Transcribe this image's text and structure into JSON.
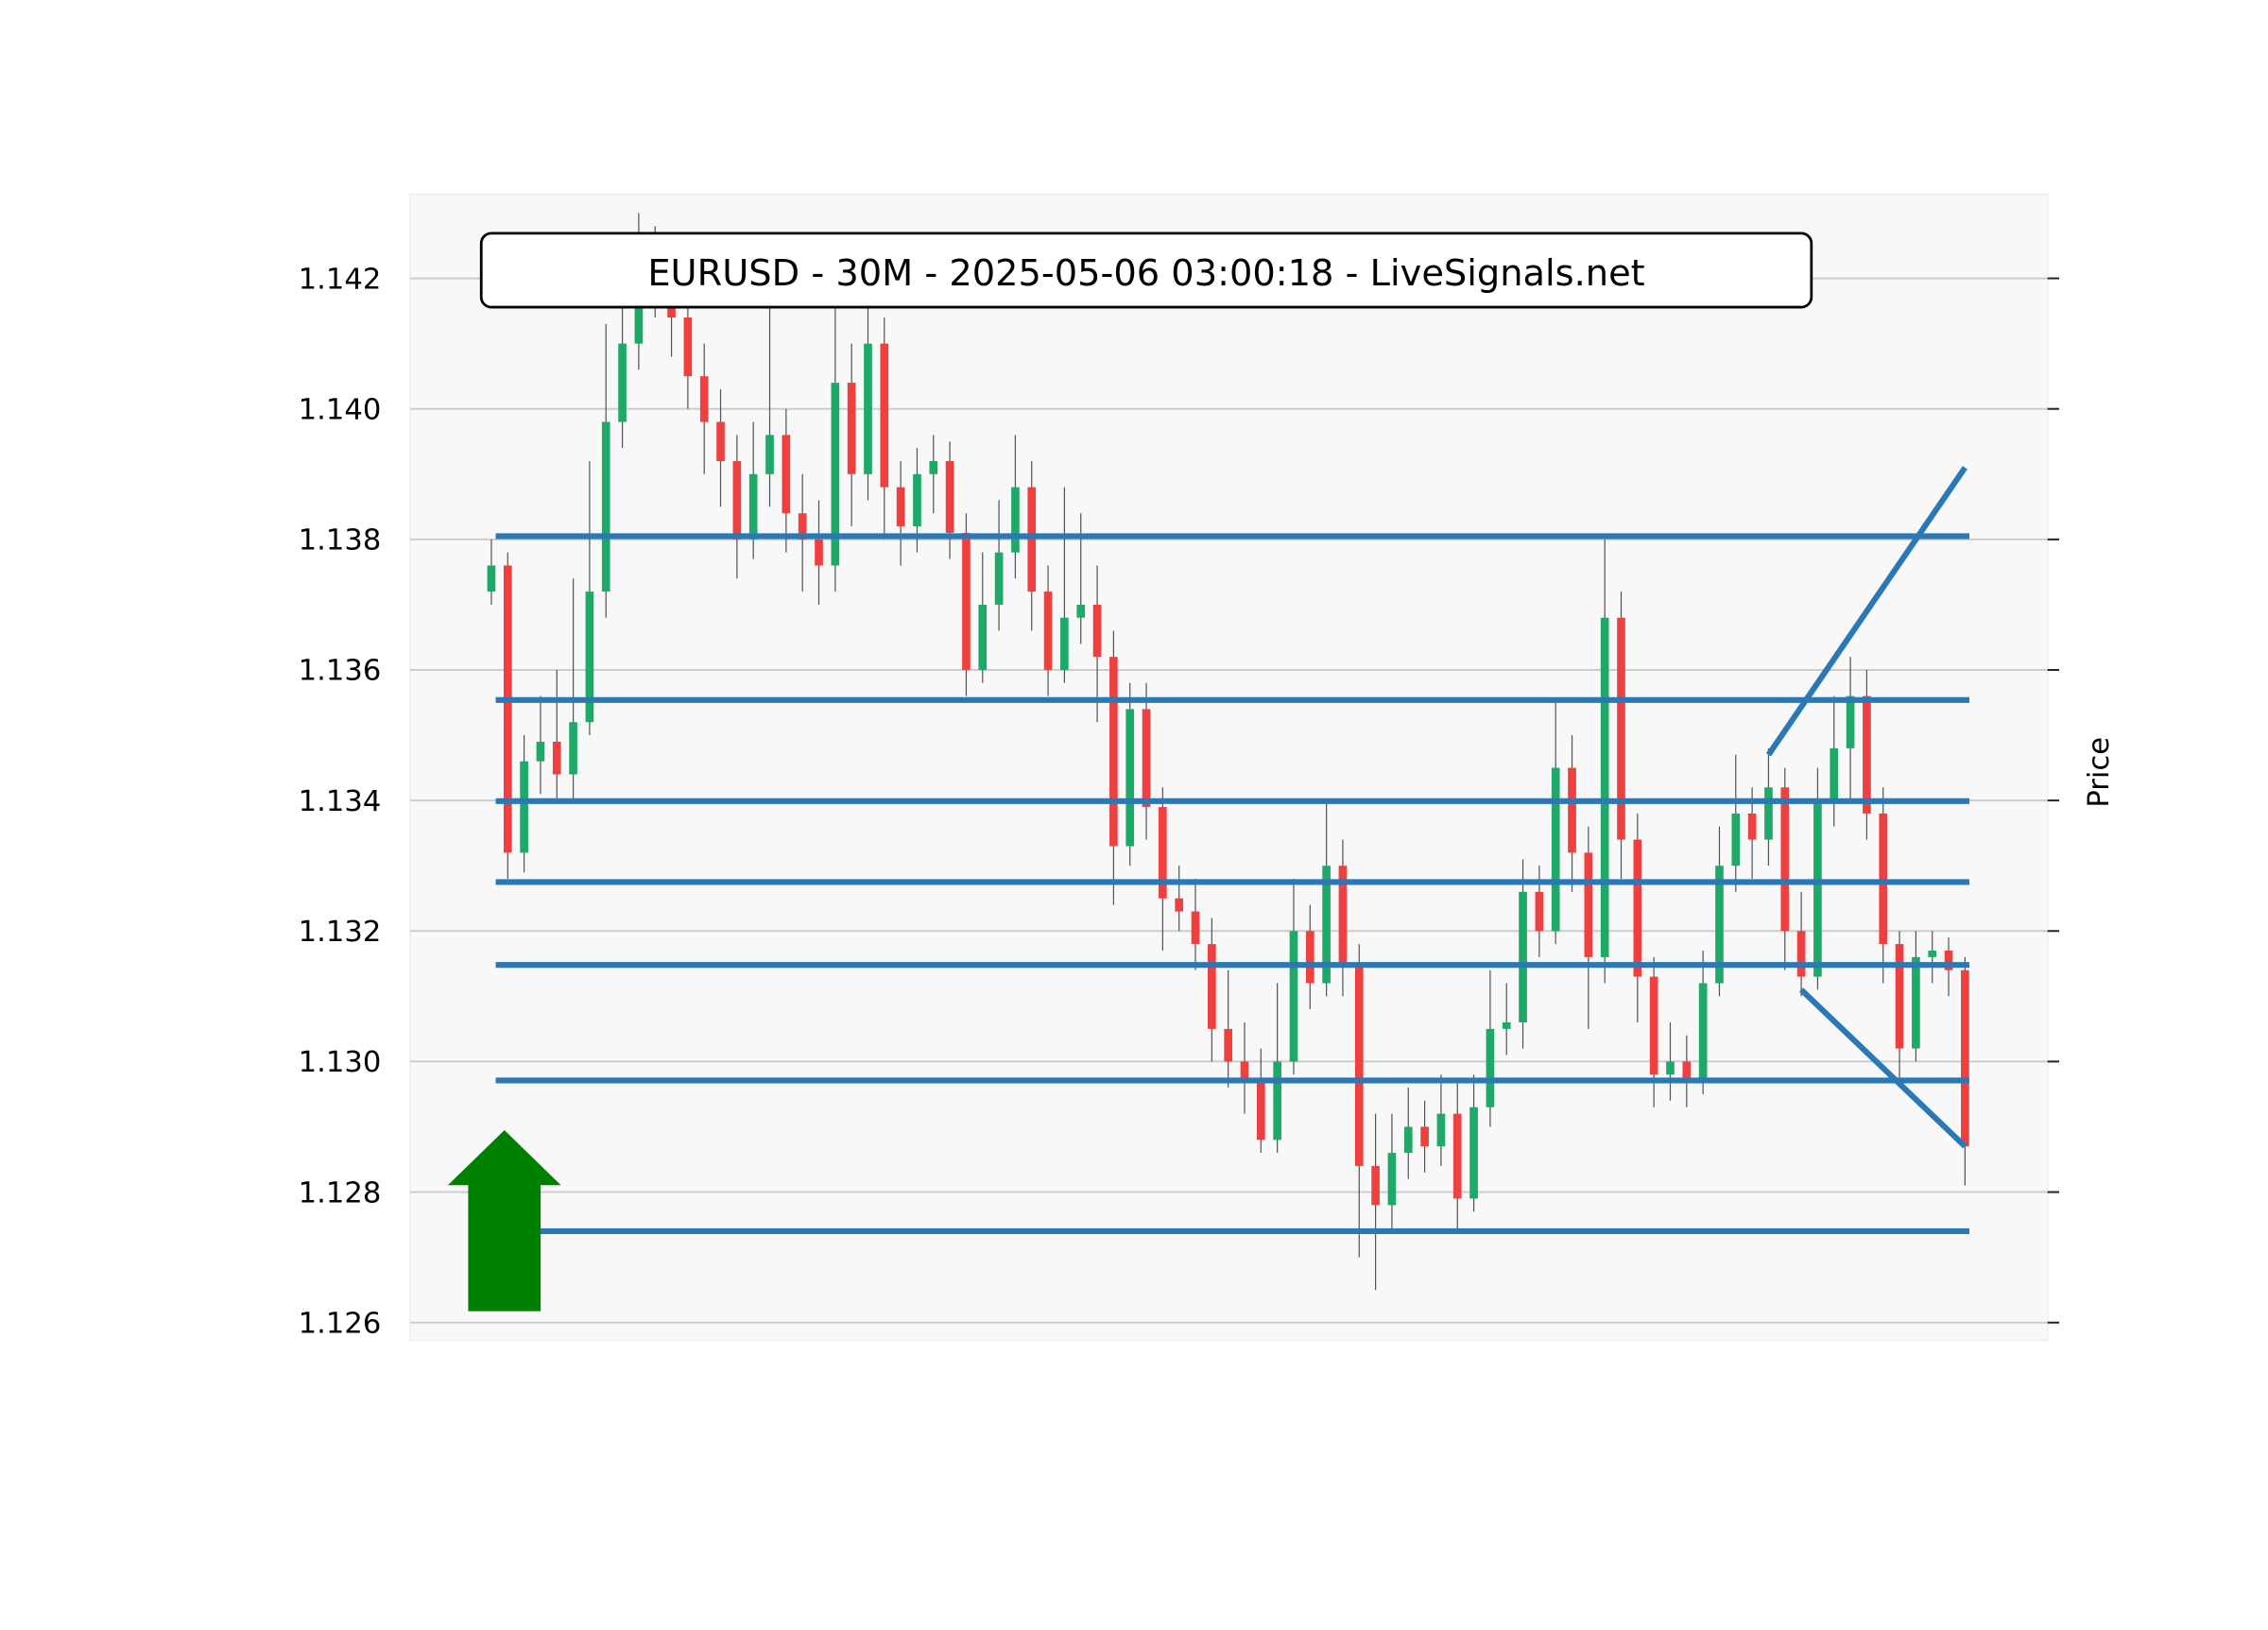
{
  "chart_data": {
    "type": "candlestick",
    "title": "EURUSD - 30M - 2025-05-06 03:00:18 - LiveSignals.net",
    "y_label": "Price",
    "ylim": [
      1.12573,
      1.14329
    ],
    "yticks": [
      {
        "value": 1.126,
        "label": "1.126"
      },
      {
        "value": 1.128,
        "label": "1.128"
      },
      {
        "value": 1.13,
        "label": "1.130"
      },
      {
        "value": 1.132,
        "label": "1.132"
      },
      {
        "value": 1.134,
        "label": "1.134"
      },
      {
        "value": 1.136,
        "label": "1.136"
      },
      {
        "value": 1.138,
        "label": "1.138"
      },
      {
        "value": 1.14,
        "label": "1.140"
      },
      {
        "value": 1.142,
        "label": "1.142"
      }
    ],
    "grid": true,
    "up_color": "#1fa968",
    "down_color": "#ef4040",
    "wick_color": "#555555",
    "line_color": "#2a78b5",
    "signal_color": "#008000",
    "open": [
      1.1372,
      1.1376,
      1.1332,
      1.1346,
      1.1349,
      1.1344,
      1.1352,
      1.1372,
      1.1398,
      1.141,
      1.1424,
      1.142,
      1.1414,
      1.1405,
      1.1398,
      1.1392,
      1.138,
      1.139,
      1.1396,
      1.1384,
      1.138,
      1.1376,
      1.1404,
      1.139,
      1.141,
      1.1388,
      1.1382,
      1.139,
      1.1392,
      1.1381,
      1.136,
      1.137,
      1.1378,
      1.1388,
      1.1372,
      1.136,
      1.1368,
      1.137,
      1.1362,
      1.1333,
      1.1354,
      1.1339,
      1.1325,
      1.1323,
      1.1318,
      1.1305,
      1.13,
      1.1297,
      1.1288,
      1.13,
      1.132,
      1.1312,
      1.133,
      1.1315,
      1.1284,
      1.1278,
      1.1286,
      1.129,
      1.1287,
      1.1292,
      1.1279,
      1.1293,
      1.1305,
      1.1306,
      1.1326,
      1.132,
      1.1345,
      1.1332,
      1.1316,
      1.1368,
      1.1334,
      1.1313,
      1.1298,
      1.13,
      1.1297,
      1.1312,
      1.133,
      1.1338,
      1.1334,
      1.1342,
      1.132,
      1.1313,
      1.134,
      1.1348,
      1.1356,
      1.1338,
      1.1318,
      1.1302,
      1.1316,
      1.1317,
      1.1314
    ],
    "high": [
      1.138,
      1.1378,
      1.135,
      1.1356,
      1.136,
      1.1374,
      1.1392,
      1.1413,
      1.142,
      1.143,
      1.1428,
      1.1424,
      1.1418,
      1.141,
      1.1403,
      1.1396,
      1.1398,
      1.1416,
      1.14,
      1.139,
      1.1386,
      1.1418,
      1.141,
      1.142,
      1.1414,
      1.1392,
      1.1394,
      1.1396,
      1.1395,
      1.1384,
      1.1378,
      1.1386,
      1.1396,
      1.1392,
      1.1376,
      1.1388,
      1.1384,
      1.1376,
      1.1366,
      1.1358,
      1.1358,
      1.1342,
      1.133,
      1.1328,
      1.1322,
      1.1314,
      1.1306,
      1.1302,
      1.1312,
      1.1328,
      1.1324,
      1.134,
      1.1334,
      1.1318,
      1.1292,
      1.1292,
      1.1296,
      1.1294,
      1.1298,
      1.1297,
      1.1298,
      1.1314,
      1.1312,
      1.1331,
      1.133,
      1.1355,
      1.135,
      1.1336,
      1.138,
      1.1372,
      1.1338,
      1.1316,
      1.1306,
      1.1304,
      1.1317,
      1.1336,
      1.1347,
      1.1342,
      1.1348,
      1.1345,
      1.1326,
      1.1345,
      1.1356,
      1.1362,
      1.136,
      1.1342,
      1.132,
      1.132,
      1.132,
      1.1319,
      1.1316
    ],
    "low": [
      1.137,
      1.1328,
      1.1329,
      1.1341,
      1.134,
      1.134,
      1.135,
      1.1368,
      1.1394,
      1.1406,
      1.1414,
      1.1408,
      1.14,
      1.139,
      1.1385,
      1.1374,
      1.1377,
      1.1385,
      1.1378,
      1.1372,
      1.137,
      1.1372,
      1.1382,
      1.1386,
      1.138,
      1.1376,
      1.1378,
      1.1384,
      1.1377,
      1.1356,
      1.1358,
      1.1366,
      1.1374,
      1.1366,
      1.1356,
      1.1358,
      1.1364,
      1.1352,
      1.1324,
      1.133,
      1.1334,
      1.1317,
      1.132,
      1.1314,
      1.13,
      1.1296,
      1.1292,
      1.1286,
      1.1286,
      1.1298,
      1.1308,
      1.131,
      1.131,
      1.127,
      1.1265,
      1.1274,
      1.1282,
      1.1283,
      1.1284,
      1.1274,
      1.1277,
      1.129,
      1.1301,
      1.1302,
      1.1316,
      1.1318,
      1.1326,
      1.1305,
      1.1312,
      1.1328,
      1.1306,
      1.1293,
      1.1294,
      1.1293,
      1.1295,
      1.131,
      1.1326,
      1.1328,
      1.133,
      1.1314,
      1.131,
      1.1311,
      1.1336,
      1.134,
      1.1334,
      1.1312,
      1.1296,
      1.13,
      1.1312,
      1.131,
      1.1281
    ],
    "close": [
      1.1376,
      1.1332,
      1.1346,
      1.1349,
      1.1344,
      1.1352,
      1.1372,
      1.1398,
      1.141,
      1.1424,
      1.142,
      1.1414,
      1.1405,
      1.1398,
      1.1392,
      1.138,
      1.139,
      1.1396,
      1.1384,
      1.138,
      1.1376,
      1.1404,
      1.139,
      1.141,
      1.1388,
      1.1382,
      1.139,
      1.1392,
      1.1381,
      1.136,
      1.137,
      1.1378,
      1.1388,
      1.1372,
      1.136,
      1.1368,
      1.137,
      1.1362,
      1.1333,
      1.1354,
      1.1339,
      1.1325,
      1.1323,
      1.1318,
      1.1305,
      1.13,
      1.1297,
      1.1288,
      1.13,
      1.132,
      1.1312,
      1.133,
      1.1315,
      1.1284,
      1.1278,
      1.1286,
      1.129,
      1.1287,
      1.1292,
      1.1279,
      1.1293,
      1.1305,
      1.1306,
      1.1326,
      1.132,
      1.1345,
      1.1332,
      1.1316,
      1.1368,
      1.1334,
      1.1313,
      1.1298,
      1.13,
      1.1297,
      1.1312,
      1.133,
      1.1338,
      1.1334,
      1.1342,
      1.132,
      1.1313,
      1.134,
      1.1348,
      1.1356,
      1.1338,
      1.1318,
      1.1302,
      1.1316,
      1.1317,
      1.1314,
      1.1287
    ],
    "levels": [
      1.13805,
      1.13554,
      1.13399,
      1.13275,
      1.13148,
      1.12971,
      1.1274
    ],
    "trendlines": [
      {
        "x": [
          78,
          90
        ],
        "y": [
          1.1347,
          1.1391
        ]
      },
      {
        "x": [
          80,
          90
        ],
        "y": [
          1.1311,
          1.1287
        ]
      }
    ]
  }
}
